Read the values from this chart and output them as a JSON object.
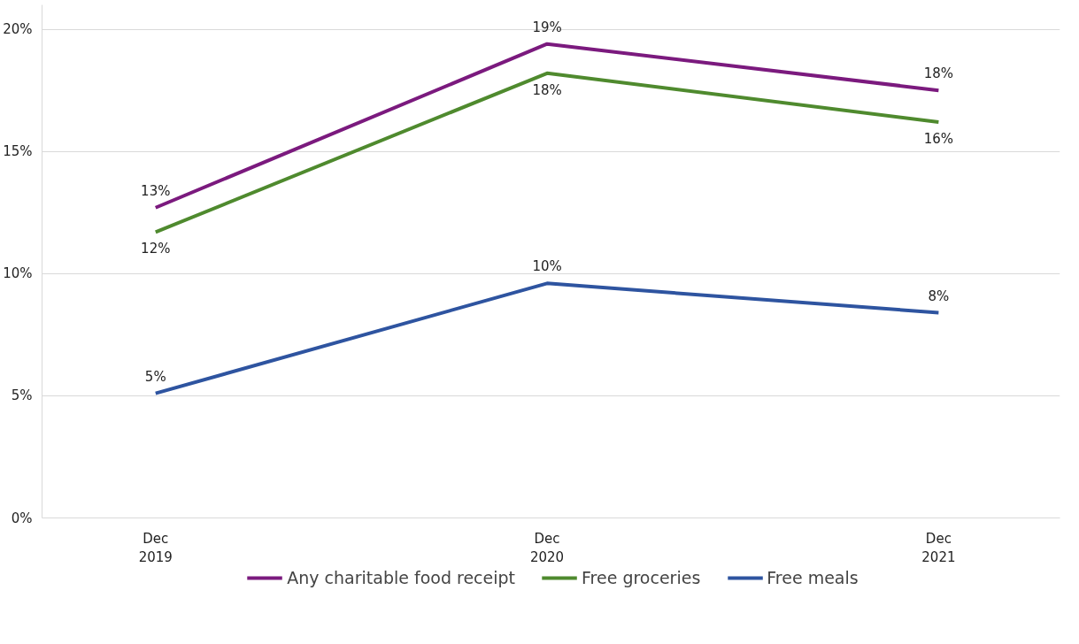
{
  "chart_data": {
    "type": "line",
    "categories": [
      "Dec\n2019",
      "Dec\n2020",
      "Dec\n2021"
    ],
    "series": [
      {
        "name": "Any charitable food receipt",
        "color": "#7b1a7e",
        "values": [
          12.7,
          19.4,
          17.5
        ],
        "value_labels": [
          "13%",
          "19%",
          "18%"
        ]
      },
      {
        "name": "Free groceries",
        "color": "#4f8a2e",
        "values": [
          11.7,
          18.2,
          16.2
        ],
        "value_labels": [
          "12%",
          "18%",
          "16%"
        ]
      },
      {
        "name": "Free meals",
        "color": "#2e54a0",
        "values": [
          5.1,
          9.6,
          8.4
        ],
        "value_labels": [
          "5%",
          "10%",
          "8%"
        ]
      }
    ],
    "ylim": [
      0,
      21
    ],
    "yticks": [
      {
        "value": 0,
        "label": "0%"
      },
      {
        "value": 5,
        "label": "5%"
      },
      {
        "value": 10,
        "label": "10%"
      },
      {
        "value": 15,
        "label": "15%"
      },
      {
        "value": 20,
        "label": "20%"
      }
    ],
    "grid": "y",
    "legend": "bottom",
    "marker": "none",
    "line_style": "solid"
  }
}
